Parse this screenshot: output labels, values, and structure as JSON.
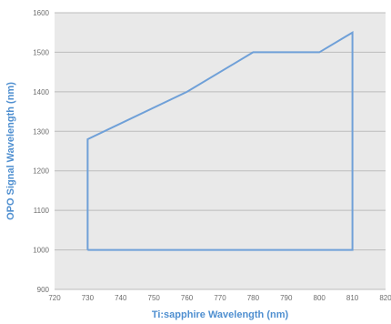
{
  "chart_data": {
    "type": "line",
    "title": "",
    "xlabel": "Ti:sapphire Wavelength (nm)",
    "ylabel": "OPO Signal Wavelength (nm)",
    "xlim": [
      720,
      820
    ],
    "ylim": [
      900,
      1600
    ],
    "x_ticks": [
      "720",
      "730",
      "740",
      "750",
      "760",
      "770",
      "780",
      "790",
      "800",
      "810",
      "820"
    ],
    "y_ticks": [
      "900",
      "1000",
      "1100",
      "1200",
      "1300",
      "1400",
      "1500",
      "1600"
    ],
    "grid": true,
    "legend": "none",
    "series": [
      {
        "x": [
          730,
          730,
          760,
          780,
          800,
          810,
          810,
          730
        ],
        "y": [
          1000,
          1280,
          1400,
          1500,
          1500,
          1550,
          1000,
          1000
        ]
      }
    ],
    "colors": {
      "line": "#6fa0d8",
      "plot_bg": "#e9e9e9",
      "grid": "#bcbcbc",
      "axis_title": "#4f8fd0"
    }
  }
}
